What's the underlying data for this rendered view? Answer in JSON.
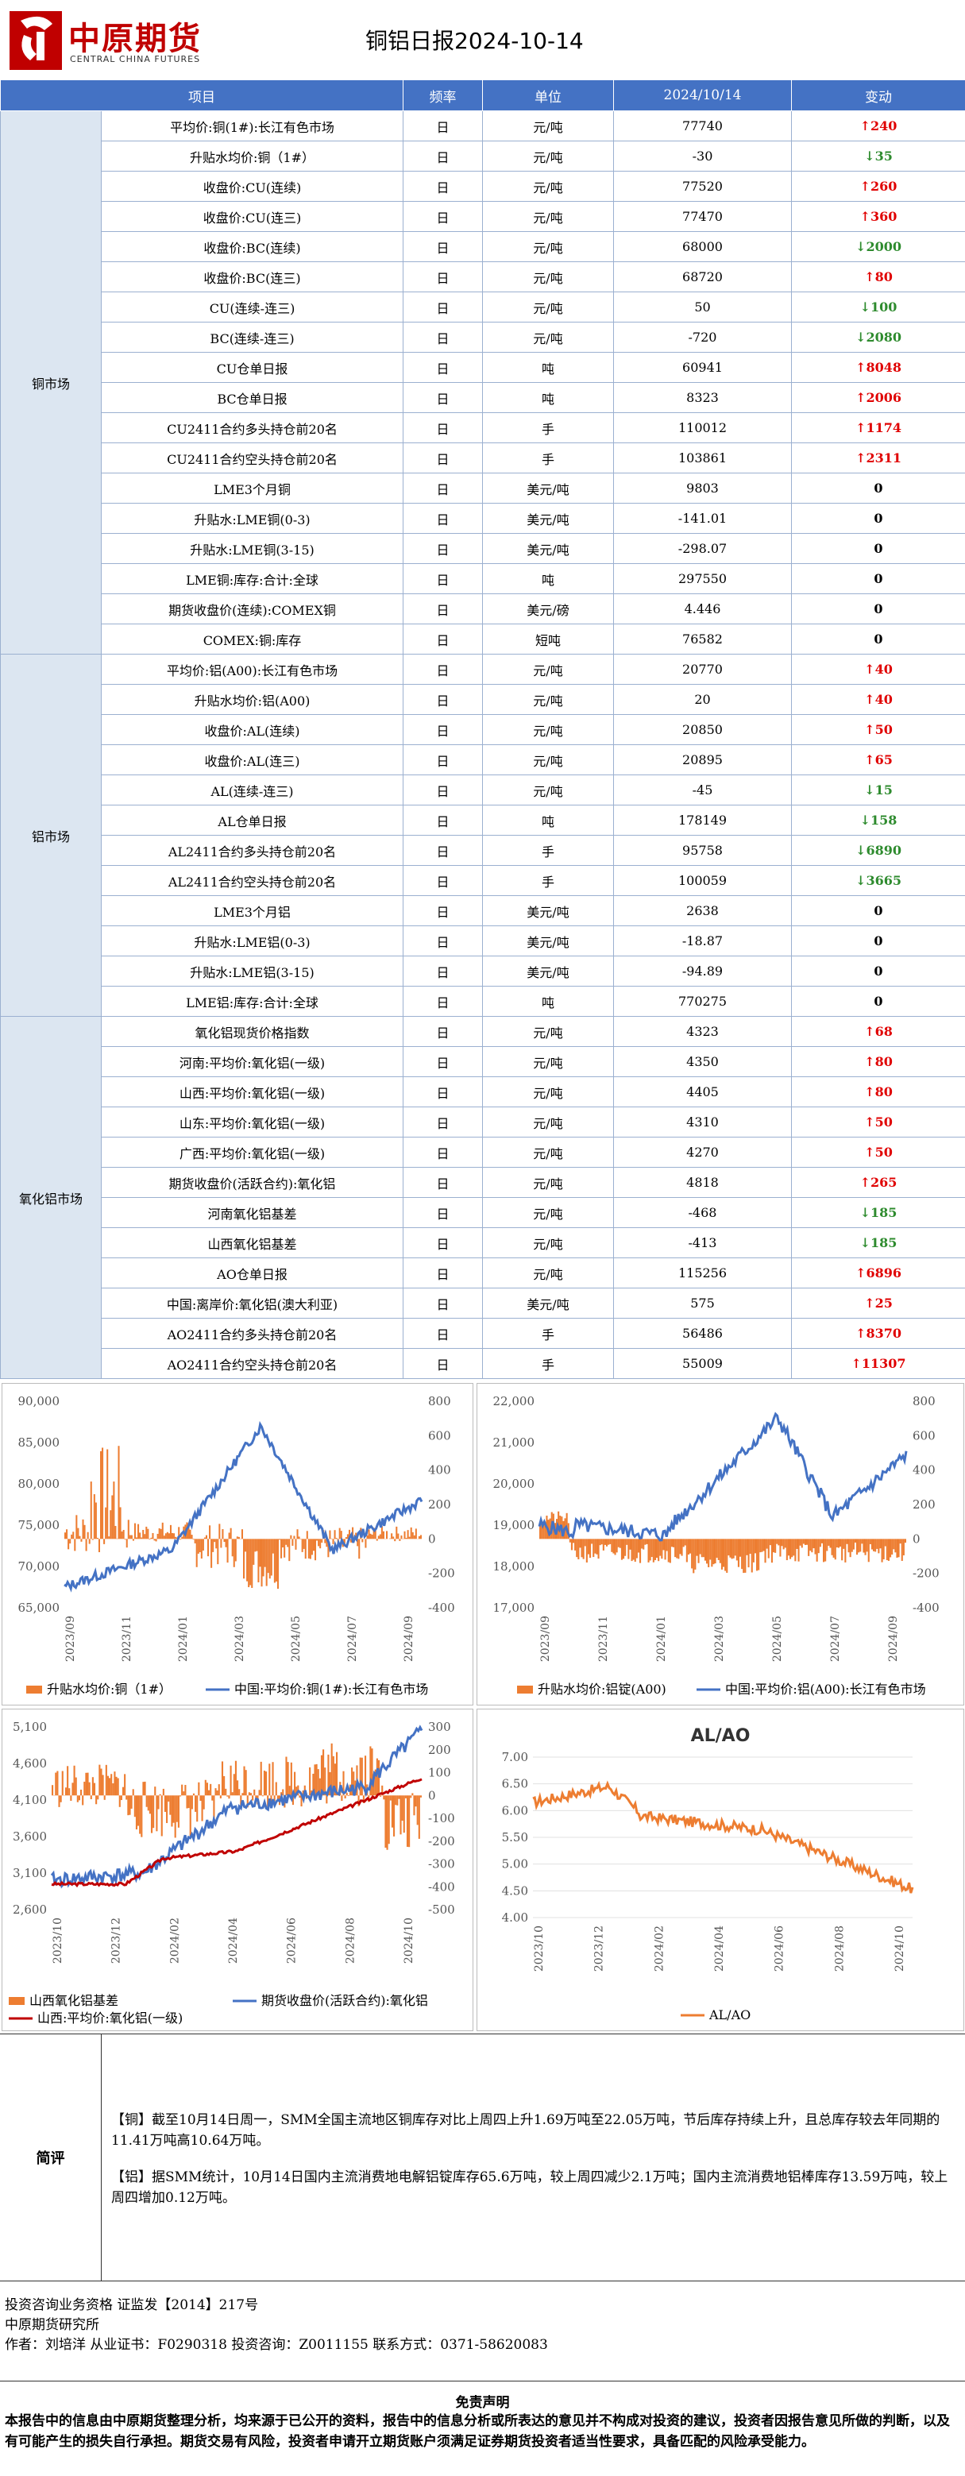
{
  "header": {
    "logo_cn": "中原期货",
    "logo_en": "CENTRAL CHINA FUTURES",
    "title": "铜铝日报2024-10-14",
    "brand_color": "#c00000"
  },
  "table": {
    "headers": [
      "项目",
      "频率",
      "单位",
      "2024/10/14",
      "变动"
    ],
    "groups": [
      {
        "name": "铜市场",
        "rows": [
          {
            "item": "平均价:铜(1#):长江有色市场",
            "freq": "日",
            "unit": "元/吨",
            "value": "77740",
            "dir": "up",
            "change": "240"
          },
          {
            "item": "升贴水均价:铜（1#）",
            "freq": "日",
            "unit": "元/吨",
            "value": "-30",
            "dir": "down",
            "change": "35"
          },
          {
            "item": "收盘价:CU(连续)",
            "freq": "日",
            "unit": "元/吨",
            "value": "77520",
            "dir": "up",
            "change": "260"
          },
          {
            "item": "收盘价:CU(连三)",
            "freq": "日",
            "unit": "元/吨",
            "value": "77470",
            "dir": "up",
            "change": "360"
          },
          {
            "item": "收盘价:BC(连续)",
            "freq": "日",
            "unit": "元/吨",
            "value": "68000",
            "dir": "down",
            "change": "2000"
          },
          {
            "item": "收盘价:BC(连三)",
            "freq": "日",
            "unit": "元/吨",
            "value": "68720",
            "dir": "up",
            "change": "80"
          },
          {
            "item": "CU(连续-连三)",
            "freq": "日",
            "unit": "元/吨",
            "value": "50",
            "dir": "down",
            "change": "100"
          },
          {
            "item": "BC(连续-连三)",
            "freq": "日",
            "unit": "元/吨",
            "value": "-720",
            "dir": "down",
            "change": "2080"
          },
          {
            "item": "CU仓单日报",
            "freq": "日",
            "unit": "吨",
            "value": "60941",
            "dir": "up",
            "change": "8048"
          },
          {
            "item": "BC仓单日报",
            "freq": "日",
            "unit": "吨",
            "value": "8323",
            "dir": "up",
            "change": "2006"
          },
          {
            "item": "CU2411合约多头持仓前20名",
            "freq": "日",
            "unit": "手",
            "value": "110012",
            "dir": "up",
            "change": "1174"
          },
          {
            "item": "CU2411合约空头持仓前20名",
            "freq": "日",
            "unit": "手",
            "value": "103861",
            "dir": "up",
            "change": "2311"
          },
          {
            "item": "LME3个月铜",
            "freq": "日",
            "unit": "美元/吨",
            "value": "9803",
            "dir": "zero",
            "change": "0"
          },
          {
            "item": "升贴水:LME铜(0-3)",
            "freq": "日",
            "unit": "美元/吨",
            "value": "-141.01",
            "dir": "zero",
            "change": "0"
          },
          {
            "item": "升贴水:LME铜(3-15)",
            "freq": "日",
            "unit": "美元/吨",
            "value": "-298.07",
            "dir": "zero",
            "change": "0"
          },
          {
            "item": "LME铜:库存:合计:全球",
            "freq": "日",
            "unit": "吨",
            "value": "297550",
            "dir": "zero",
            "change": "0"
          },
          {
            "item": "期货收盘价(连续):COMEX铜",
            "freq": "日",
            "unit": "美元/磅",
            "value": "4.446",
            "dir": "zero",
            "change": "0"
          },
          {
            "item": "COMEX:铜:库存",
            "freq": "日",
            "unit": "短吨",
            "value": "76582",
            "dir": "zero",
            "change": "0"
          }
        ]
      },
      {
        "name": "铝市场",
        "rows": [
          {
            "item": "平均价:铝(A00):长江有色市场",
            "freq": "日",
            "unit": "元/吨",
            "value": "20770",
            "dir": "up",
            "change": "40"
          },
          {
            "item": "升贴水均价:铝(A00)",
            "freq": "日",
            "unit": "元/吨",
            "value": "20",
            "dir": "up",
            "change": "40"
          },
          {
            "item": "收盘价:AL(连续)",
            "freq": "日",
            "unit": "元/吨",
            "value": "20850",
            "dir": "up",
            "change": "50"
          },
          {
            "item": "收盘价:AL(连三)",
            "freq": "日",
            "unit": "元/吨",
            "value": "20895",
            "dir": "up",
            "change": "65"
          },
          {
            "item": "AL(连续-连三)",
            "freq": "日",
            "unit": "元/吨",
            "value": "-45",
            "dir": "down",
            "change": "15"
          },
          {
            "item": "AL仓单日报",
            "freq": "日",
            "unit": "吨",
            "value": "178149",
            "dir": "down",
            "change": "158"
          },
          {
            "item": "AL2411合约多头持仓前20名",
            "freq": "日",
            "unit": "手",
            "value": "95758",
            "dir": "down",
            "change": "6890"
          },
          {
            "item": "AL2411合约空头持仓前20名",
            "freq": "日",
            "unit": "手",
            "value": "100059",
            "dir": "down",
            "change": "3665"
          },
          {
            "item": "LME3个月铝",
            "freq": "日",
            "unit": "美元/吨",
            "value": "2638",
            "dir": "zero",
            "change": "0"
          },
          {
            "item": "升贴水:LME铝(0-3)",
            "freq": "日",
            "unit": "美元/吨",
            "value": "-18.87",
            "dir": "zero",
            "change": "0"
          },
          {
            "item": "升贴水:LME铝(3-15)",
            "freq": "日",
            "unit": "美元/吨",
            "value": "-94.89",
            "dir": "zero",
            "change": "0"
          },
          {
            "item": "LME铝:库存:合计:全球",
            "freq": "日",
            "unit": "吨",
            "value": "770275",
            "dir": "zero",
            "change": "0"
          }
        ]
      },
      {
        "name": "氧化铝市场",
        "rows": [
          {
            "item": "氧化铝现货价格指数",
            "freq": "日",
            "unit": "元/吨",
            "value": "4323",
            "dir": "up",
            "change": "68"
          },
          {
            "item": "河南:平均价:氧化铝(一级)",
            "freq": "日",
            "unit": "元/吨",
            "value": "4350",
            "dir": "up",
            "change": "80"
          },
          {
            "item": "山西:平均价:氧化铝(一级)",
            "freq": "日",
            "unit": "元/吨",
            "value": "4405",
            "dir": "up",
            "change": "80"
          },
          {
            "item": "山东:平均价:氧化铝(一级)",
            "freq": "日",
            "unit": "元/吨",
            "value": "4310",
            "dir": "up",
            "change": "50"
          },
          {
            "item": "广西:平均价:氧化铝(一级)",
            "freq": "日",
            "unit": "元/吨",
            "value": "4270",
            "dir": "up",
            "change": "50"
          },
          {
            "item": "期货收盘价(活跃合约):氧化铝",
            "freq": "日",
            "unit": "元/吨",
            "value": "4818",
            "dir": "up",
            "change": "265"
          },
          {
            "item": "河南氧化铝基差",
            "freq": "日",
            "unit": "元/吨",
            "value": "-468",
            "dir": "down",
            "change": "185"
          },
          {
            "item": "山西氧化铝基差",
            "freq": "日",
            "unit": "元/吨",
            "value": "-413",
            "dir": "down",
            "change": "185"
          },
          {
            "item": "AO仓单日报",
            "freq": "日",
            "unit": "元/吨",
            "value": "115256",
            "dir": "up",
            "change": "6896"
          },
          {
            "item": "中国:离岸价:氧化铝(澳大利亚)",
            "freq": "日",
            "unit": "美元/吨",
            "value": "575",
            "dir": "up",
            "change": "25"
          },
          {
            "item": "AO2411合约多头持仓前20名",
            "freq": "日",
            "unit": "手",
            "value": "56486",
            "dir": "up",
            "change": "8370"
          },
          {
            "item": "AO2411合约空头持仓前20名",
            "freq": "日",
            "unit": "手",
            "value": "55009",
            "dir": "up",
            "change": "11307"
          }
        ]
      }
    ]
  },
  "charts": {
    "c1": {
      "left_ticks": [
        "90,000",
        "85,000",
        "80,000",
        "75,000",
        "70,000",
        "65,000"
      ],
      "right_ticks": [
        "800",
        "600",
        "400",
        "200",
        "0",
        "-200",
        "-400"
      ],
      "x_ticks": [
        "2023/09",
        "2023/11",
        "2024/01",
        "2024/03",
        "2024/05",
        "2024/07",
        "2024/09"
      ],
      "legend_bar": "升贴水均价:铜（1#）",
      "legend_line": "中国:平均价:铜(1#):长江有色市场"
    },
    "c2": {
      "left_ticks": [
        "22,000",
        "21,000",
        "20,000",
        "19,000",
        "18,000",
        "17,000"
      ],
      "right_ticks": [
        "800",
        "600",
        "400",
        "200",
        "0",
        "-200",
        "-400"
      ],
      "x_ticks": [
        "2023/09",
        "2023/11",
        "2024/01",
        "2024/03",
        "2024/05",
        "2024/07",
        "2024/09"
      ],
      "legend_bar": "升贴水均价:铝锭(A00)",
      "legend_line": "中国:平均价:铝(A00):长江有色市场"
    },
    "c3": {
      "left_ticks": [
        "5,100",
        "4,600",
        "4,100",
        "3,600",
        "3,100",
        "2,600"
      ],
      "right_ticks": [
        "300",
        "200",
        "100",
        "0",
        "-100",
        "-200",
        "-300",
        "-400",
        "-500"
      ],
      "x_ticks": [
        "2023/10",
        "2023/12",
        "2024/02",
        "2024/04",
        "2024/06",
        "2024/08",
        "2024/10"
      ],
      "legend_bar": "山西氧化铝基差",
      "legend_line1": "期货收盘价(活跃合约):氧化铝",
      "legend_line2": "山西:平均价:氧化铝(一级)"
    },
    "c4": {
      "title": "AL/AO",
      "left_ticks": [
        "7.00",
        "6.50",
        "6.00",
        "5.50",
        "5.00",
        "4.50",
        "4.00"
      ],
      "x_ticks": [
        "2023/10",
        "2023/12",
        "2024/02",
        "2024/04",
        "2024/06",
        "2024/08",
        "2024/10"
      ],
      "legend_line": "AL/AO"
    },
    "colors": {
      "bar": "#ed7d31",
      "line": "#4472c4",
      "red_line": "#c00000"
    }
  },
  "comment": {
    "label": "简评",
    "p1": "【铜】截至10月14日周一，SMM全国主流地区铜库存对比上周四上升1.69万吨至22.05万吨，节后库存持续上升，且总库存较去年同期的11.41万吨高10.64万吨。",
    "p2": "【铝】据SMM统计，10月14日国内主流消费地电解铝锭库存65.6万吨，较上周四减少2.1万吨；国内主流消费地铝棒库存13.59万吨，较上周四增加0.12万吨。"
  },
  "footer": {
    "line1": "投资咨询业务资格   证监发【2014】217号",
    "line2": "中原期货研究所",
    "line3": "作者：刘培洋      从业证书：F0290318      投资咨询：Z0011155      联系方式：0371-58620083",
    "disclaimer_title": "免责声明",
    "disclaimer": "本报告中的信息由中原期货整理分析，均来源于已公开的资料，报告中的信息分析或所表达的意见并不构成对投资的建议，投资者因报告意见所做的判断，以及有可能产生的损失自行承担。期货交易有风险，投资者申请开立期货账户须满足证券期货投资者适当性要求，具备匹配的风险承受能力。"
  }
}
